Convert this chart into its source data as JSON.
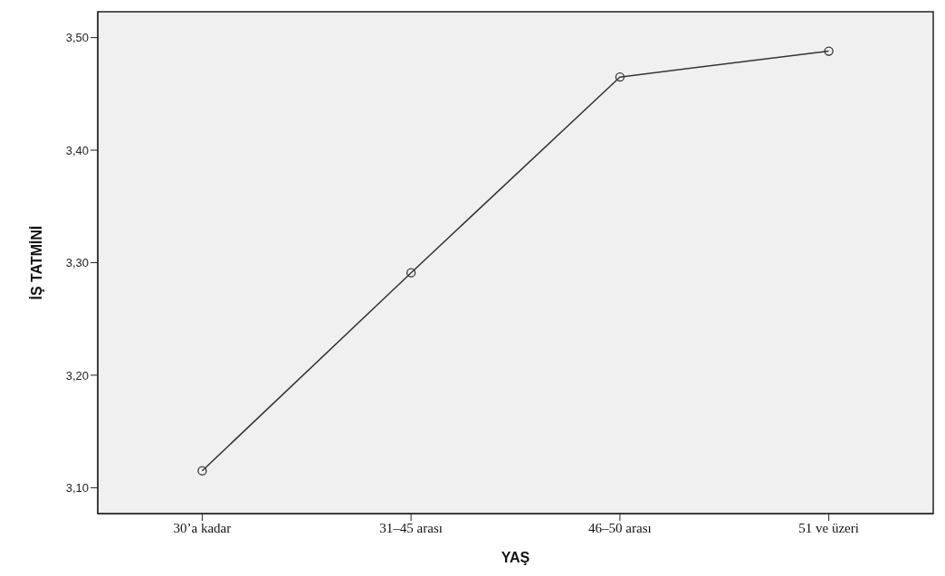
{
  "chart_data": {
    "type": "line",
    "xlabel": "YAŞ",
    "ylabel": "İŞ TATMİNİ",
    "categories": [
      "30’a kadar",
      "31–45 arası",
      "46–50 arası",
      "51 ve üzeri"
    ],
    "series": [
      {
        "color": "#333333",
        "values": [
          3.115,
          3.291,
          3.465,
          3.488
        ]
      }
    ],
    "ylim": [
      3.077,
      3.523
    ],
    "yticks": [
      {
        "value": 3.1,
        "label": "3,10"
      },
      {
        "value": 3.2,
        "label": "3,20"
      },
      {
        "value": 3.3,
        "label": "3,30"
      },
      {
        "value": 3.4,
        "label": "3,40"
      },
      {
        "value": 3.5,
        "label": "3,50"
      }
    ],
    "grid": false,
    "legend": false,
    "marker": "circle",
    "line_style": "solid"
  }
}
